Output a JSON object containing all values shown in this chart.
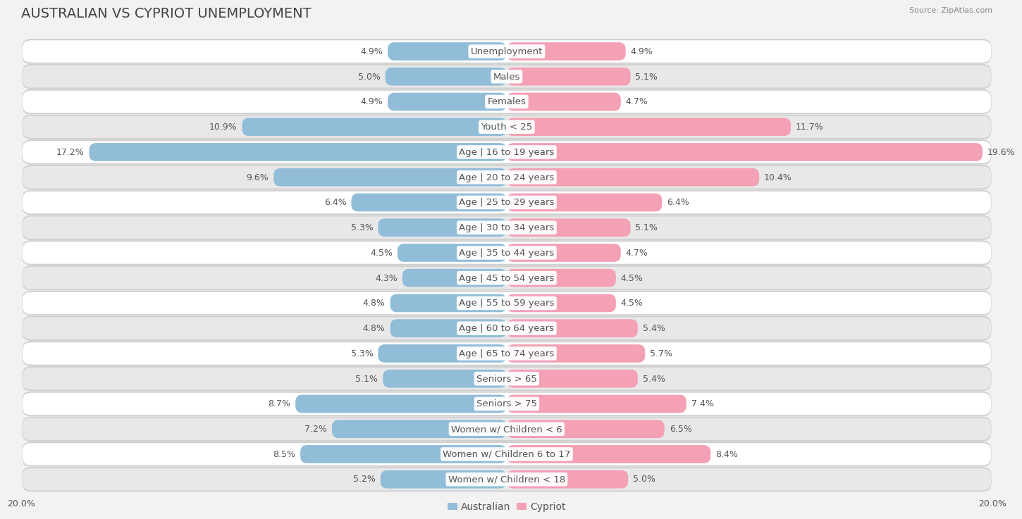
{
  "title": "AUSTRALIAN VS CYPRIOT UNEMPLOYMENT",
  "source": "Source: ZipAtlas.com",
  "categories": [
    "Unemployment",
    "Males",
    "Females",
    "Youth < 25",
    "Age | 16 to 19 years",
    "Age | 20 to 24 years",
    "Age | 25 to 29 years",
    "Age | 30 to 34 years",
    "Age | 35 to 44 years",
    "Age | 45 to 54 years",
    "Age | 55 to 59 years",
    "Age | 60 to 64 years",
    "Age | 65 to 74 years",
    "Seniors > 65",
    "Seniors > 75",
    "Women w/ Children < 6",
    "Women w/ Children 6 to 17",
    "Women w/ Children < 18"
  ],
  "australian": [
    4.9,
    5.0,
    4.9,
    10.9,
    17.2,
    9.6,
    6.4,
    5.3,
    4.5,
    4.3,
    4.8,
    4.8,
    5.3,
    5.1,
    8.7,
    7.2,
    8.5,
    5.2
  ],
  "cypriot": [
    4.9,
    5.1,
    4.7,
    11.7,
    19.6,
    10.4,
    6.4,
    5.1,
    4.7,
    4.5,
    4.5,
    5.4,
    5.7,
    5.4,
    7.4,
    6.5,
    8.4,
    5.0
  ],
  "australian_color": "#92bdd9",
  "cypriot_color": "#f4a0b5",
  "australian_highlight": "#6699cc",
  "cypriot_highlight": "#f06080",
  "bar_height": 0.72,
  "background_color": "#f2f2f2",
  "row_color_light": "#ffffff",
  "row_color_dark": "#e8e8e8",
  "axis_limit": 20.0,
  "title_fontsize": 14,
  "label_fontsize": 9.5,
  "value_fontsize": 9,
  "legend_fontsize": 10,
  "text_color": "#555555",
  "title_color": "#444444"
}
